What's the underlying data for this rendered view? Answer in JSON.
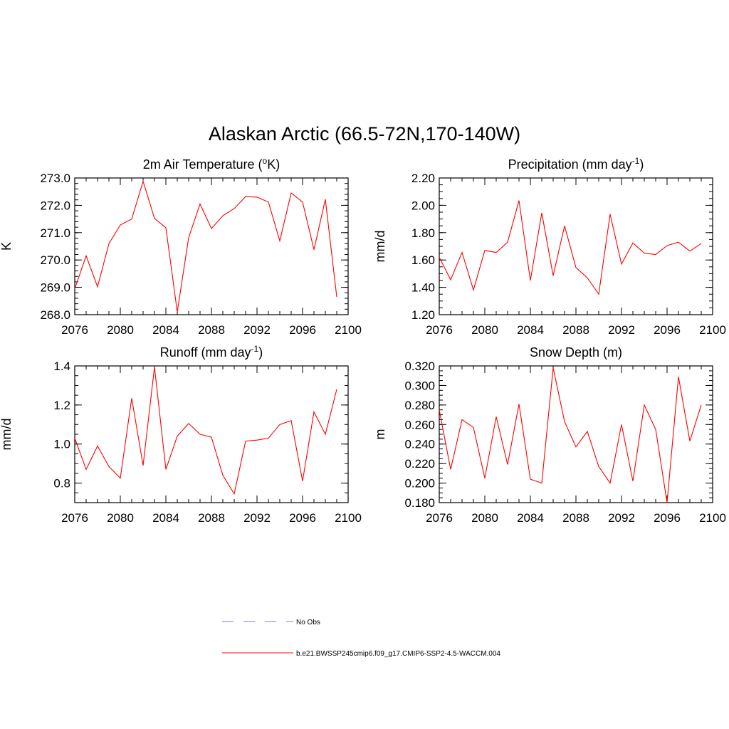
{
  "figure": {
    "title": "Alaskan Arctic (66.5-72N,170-140W)"
  },
  "legend": [
    {
      "label": "No Obs",
      "color": "#9999dd",
      "style": "dashed"
    },
    {
      "label": "b.e21.BWSSP245cmip6.f09_g17.CMIP6-SSP2-4.5-WACCM.004",
      "color": "#ff0000",
      "style": "solid"
    }
  ],
  "chart_data": [
    {
      "type": "line",
      "title": "2m Air Temperature (",
      "title_sup": "o",
      "title_tail": "K)",
      "ylabel": "K",
      "xlim": [
        2076,
        2100
      ],
      "ylim": [
        268.0,
        273.0
      ],
      "xticks": [
        "2076",
        "2080",
        "2084",
        "2088",
        "2092",
        "2096",
        "2100"
      ],
      "xtick_values": [
        2076,
        2080,
        2084,
        2088,
        2092,
        2096,
        2100
      ],
      "yticks": [
        "268.0",
        "269.0",
        "270.0",
        "271.0",
        "272.0",
        "273.0"
      ],
      "ytick_values": [
        268.0,
        269.0,
        270.0,
        271.0,
        272.0,
        273.0
      ],
      "yminor_step": 0.2,
      "x": [
        2076,
        2077,
        2078,
        2079,
        2080,
        2081,
        2082,
        2083,
        2084,
        2085,
        2086,
        2087,
        2088,
        2089,
        2090,
        2091,
        2092,
        2093,
        2094,
        2095,
        2096,
        2097,
        2098,
        2099
      ],
      "series": [
        {
          "color": "#ff0000",
          "values": [
            268.95,
            270.15,
            269.02,
            270.6,
            271.28,
            271.5,
            272.88,
            271.52,
            271.18,
            268.1,
            270.82,
            272.05,
            271.15,
            271.62,
            271.88,
            272.32,
            272.3,
            272.12,
            270.7,
            272.45,
            272.12,
            270.38,
            272.22,
            268.65
          ]
        }
      ]
    },
    {
      "type": "line",
      "title": "Precipitation (mm day",
      "title_sup": "-1",
      "title_tail": ")",
      "ylabel": "mm/d",
      "xlim": [
        2076,
        2100
      ],
      "ylim": [
        1.2,
        2.2
      ],
      "xticks": [
        "2076",
        "2080",
        "2084",
        "2088",
        "2092",
        "2096",
        "2100"
      ],
      "xtick_values": [
        2076,
        2080,
        2084,
        2088,
        2092,
        2096,
        2100
      ],
      "yticks": [
        "1.20",
        "1.40",
        "1.60",
        "1.80",
        "2.00",
        "2.20"
      ],
      "ytick_values": [
        1.2,
        1.4,
        1.6,
        1.8,
        2.0,
        2.2
      ],
      "yminor_step": 0.05,
      "x": [
        2076,
        2077,
        2078,
        2079,
        2080,
        2081,
        2082,
        2083,
        2084,
        2085,
        2086,
        2087,
        2088,
        2089,
        2090,
        2091,
        2092,
        2093,
        2094,
        2095,
        2096,
        2097,
        2098,
        2099
      ],
      "series": [
        {
          "color": "#ff0000",
          "values": [
            1.62,
            1.455,
            1.655,
            1.38,
            1.67,
            1.655,
            1.73,
            2.035,
            1.45,
            1.945,
            1.485,
            1.85,
            1.545,
            1.47,
            1.35,
            1.935,
            1.57,
            1.725,
            1.65,
            1.64,
            1.705,
            1.73,
            1.665,
            1.72
          ]
        }
      ]
    },
    {
      "type": "line",
      "title": "Runoff (mm day",
      "title_sup": "-1",
      "title_tail": ")",
      "ylabel": "mm/d",
      "xlim": [
        2076,
        2100
      ],
      "ylim": [
        0.7,
        1.4
      ],
      "xticks": [
        "2076",
        "2080",
        "2084",
        "2088",
        "2092",
        "2096",
        "2100"
      ],
      "xtick_values": [
        2076,
        2080,
        2084,
        2088,
        2092,
        2096,
        2100
      ],
      "yticks": [
        "0.8",
        "1.0",
        "1.2",
        "1.4"
      ],
      "ytick_values": [
        0.8,
        1.0,
        1.2,
        1.4
      ],
      "yminor_step": 0.05,
      "x": [
        2076,
        2077,
        2078,
        2079,
        2080,
        2081,
        2082,
        2083,
        2084,
        2085,
        2086,
        2087,
        2088,
        2089,
        2090,
        2091,
        2092,
        2093,
        2094,
        2095,
        2096,
        2097,
        2098,
        2099
      ],
      "series": [
        {
          "color": "#ff0000",
          "values": [
            1.03,
            0.87,
            0.99,
            0.885,
            0.825,
            1.235,
            0.89,
            1.395,
            0.87,
            1.04,
            1.105,
            1.05,
            1.035,
            0.84,
            0.745,
            1.015,
            1.02,
            1.03,
            1.1,
            1.12,
            0.81,
            1.165,
            1.05,
            1.28
          ]
        }
      ]
    },
    {
      "type": "line",
      "title": "Snow Depth (m)",
      "title_sup": "",
      "title_tail": "",
      "ylabel": "m",
      "xlim": [
        2076,
        2100
      ],
      "ylim": [
        0.18,
        0.32
      ],
      "xticks": [
        "2076",
        "2080",
        "2084",
        "2088",
        "2092",
        "2096",
        "2100"
      ],
      "xtick_values": [
        2076,
        2080,
        2084,
        2088,
        2092,
        2096,
        2100
      ],
      "yticks": [
        "0.180",
        "0.200",
        "0.220",
        "0.240",
        "0.260",
        "0.280",
        "0.300",
        "0.320"
      ],
      "ytick_values": [
        0.18,
        0.2,
        0.22,
        0.24,
        0.26,
        0.28,
        0.3,
        0.32
      ],
      "yminor_step": 0.005,
      "x": [
        2076,
        2077,
        2078,
        2079,
        2080,
        2081,
        2082,
        2083,
        2084,
        2085,
        2086,
        2087,
        2088,
        2089,
        2090,
        2091,
        2092,
        2093,
        2094,
        2095,
        2096,
        2097,
        2098,
        2099
      ],
      "series": [
        {
          "color": "#ff0000",
          "values": [
            0.275,
            0.214,
            0.265,
            0.257,
            0.205,
            0.268,
            0.219,
            0.281,
            0.204,
            0.2,
            0.318,
            0.263,
            0.237,
            0.253,
            0.217,
            0.2,
            0.26,
            0.202,
            0.28,
            0.255,
            0.18,
            0.309,
            0.243,
            0.28
          ]
        }
      ]
    }
  ]
}
